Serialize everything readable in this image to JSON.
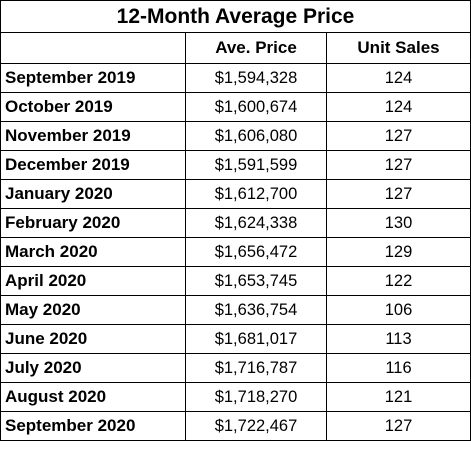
{
  "table": {
    "title": "12-Month Average Price",
    "columns": [
      "",
      "Ave. Price",
      "Unit Sales"
    ],
    "rows": [
      {
        "month": "September 2019",
        "avg_price": "$1,594,328",
        "unit_sales": "124"
      },
      {
        "month": "October 2019",
        "avg_price": "$1,600,674",
        "unit_sales": "124"
      },
      {
        "month": "November 2019",
        "avg_price": "$1,606,080",
        "unit_sales": "127"
      },
      {
        "month": "December 2019",
        "avg_price": "$1,591,599",
        "unit_sales": "127"
      },
      {
        "month": "January 2020",
        "avg_price": "$1,612,700",
        "unit_sales": "127"
      },
      {
        "month": "February 2020",
        "avg_price": "$1,624,338",
        "unit_sales": "130"
      },
      {
        "month": "March 2020",
        "avg_price": "$1,656,472",
        "unit_sales": "129"
      },
      {
        "month": "April 2020",
        "avg_price": "$1,653,745",
        "unit_sales": "122"
      },
      {
        "month": "May 2020",
        "avg_price": "$1,636,754",
        "unit_sales": "106"
      },
      {
        "month": "June 2020",
        "avg_price": "$1,681,017",
        "unit_sales": "113"
      },
      {
        "month": "July 2020",
        "avg_price": "$1,716,787",
        "unit_sales": "116"
      },
      {
        "month": "August 2020",
        "avg_price": "$1,718,270",
        "unit_sales": "121"
      },
      {
        "month": "September 2020",
        "avg_price": "$1,722,467",
        "unit_sales": "127"
      }
    ]
  }
}
